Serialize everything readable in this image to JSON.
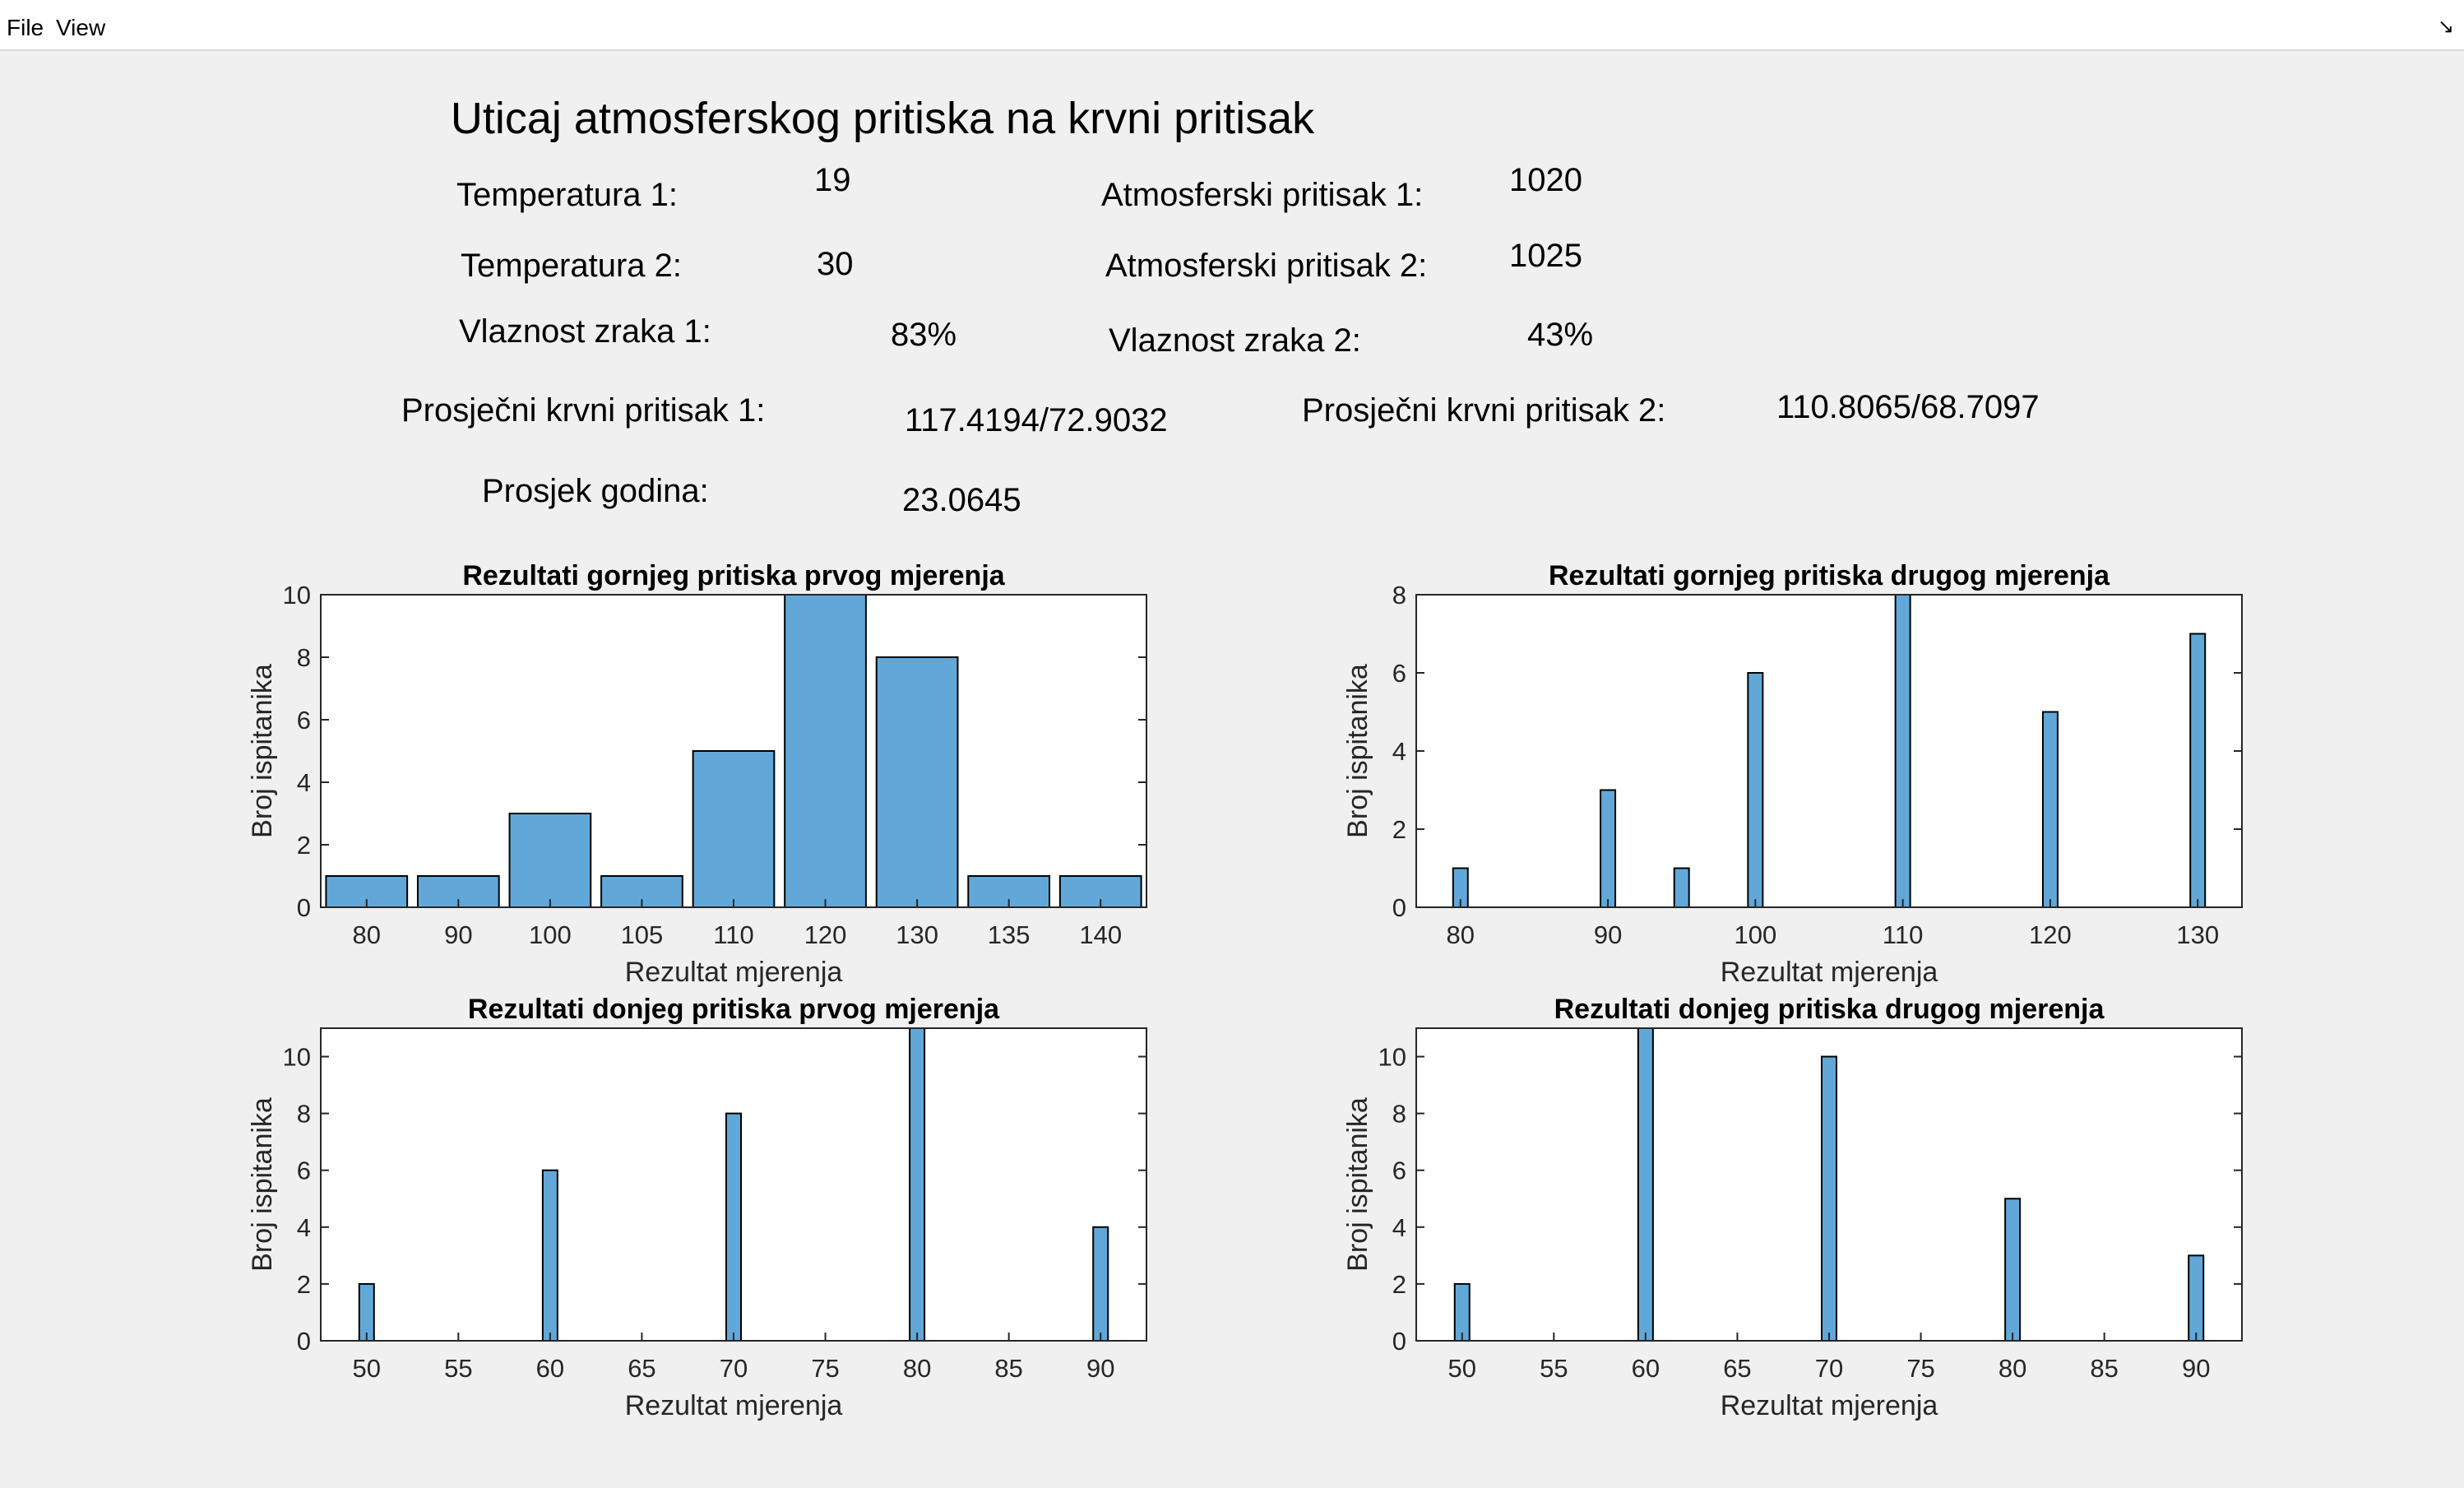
{
  "menu": {
    "file": "File",
    "view": "View"
  },
  "title": "Uticaj atmosferskog pritiska na krvni pritisak",
  "info": {
    "temp1_label": "Temperatura 1:",
    "temp1_value": "19",
    "temp2_label": "Temperatura 2:",
    "temp2_value": "30",
    "hum1_label": "Vlaznost zraka 1:",
    "hum1_value": "83%",
    "atm1_label": "Atmosferski pritisak 1:",
    "atm1_value": "1020",
    "atm2_label": "Atmosferski pritisak 2:",
    "atm2_value": "1025",
    "hum2_label": "Vlaznost zraka 2:",
    "hum2_value": "43%",
    "bp1_label": "Prosječni krvni pritisak 1:",
    "bp1_value": "117.4194/72.9032",
    "bp2_label": "Prosječni krvni pritisak 2:",
    "bp2_value": "110.8065/68.7097",
    "age_label": "Prosjek godina:",
    "age_value": "23.0645"
  },
  "chart_data": [
    {
      "type": "bar",
      "title": "Rezultati gornjeg pritiska prvog mjerenja",
      "xlabel": "Rezultat mjerenja",
      "ylabel": "Broj ispitanika",
      "scale": "categorical",
      "categories": [
        "80",
        "90",
        "100",
        "105",
        "110",
        "120",
        "130",
        "135",
        "140"
      ],
      "values": [
        1,
        1,
        3,
        1,
        5,
        10,
        8,
        1,
        1
      ],
      "ylim": [
        0,
        10
      ],
      "yticks": [
        0,
        2,
        4,
        6,
        8,
        10
      ],
      "bar_color": "#61a8d9"
    },
    {
      "type": "bar",
      "title": "Rezultati gornjeg pritiska drugog mjerenja",
      "xlabel": "Rezultat mjerenja",
      "ylabel": "Broj ispitanika",
      "scale": "numeric",
      "x": [
        80,
        90,
        95,
        100,
        110,
        120,
        130
      ],
      "values": [
        1,
        3,
        1,
        6,
        8,
        5,
        7
      ],
      "xlim": [
        77,
        133
      ],
      "xticks": [
        80,
        90,
        100,
        110,
        120,
        130
      ],
      "ylim": [
        0,
        8
      ],
      "yticks": [
        0,
        2,
        4,
        6,
        8
      ],
      "bar_color": "#61a8d9"
    },
    {
      "type": "bar",
      "title": "Rezultati donjeg pritiska prvog mjerenja",
      "xlabel": "Rezultat mjerenja",
      "ylabel": "Broj ispitanika",
      "scale": "numeric",
      "x": [
        50,
        60,
        70,
        80,
        90
      ],
      "values": [
        2,
        6,
        8,
        11,
        4
      ],
      "xlim": [
        47.5,
        92.5
      ],
      "xticks": [
        50,
        55,
        60,
        65,
        70,
        75,
        80,
        85,
        90
      ],
      "ylim": [
        0,
        11
      ],
      "yticks": [
        0,
        2,
        4,
        6,
        8,
        10
      ],
      "bar_color": "#61a8d9"
    },
    {
      "type": "bar",
      "title": "Rezultati donjeg pritiska drugog mjerenja",
      "xlabel": "Rezultat mjerenja",
      "ylabel": "Broj ispitanika",
      "scale": "numeric",
      "x": [
        50,
        60,
        70,
        80,
        90
      ],
      "values": [
        2,
        11,
        10,
        5,
        3
      ],
      "xlim": [
        47.5,
        92.5
      ],
      "xticks": [
        50,
        55,
        60,
        65,
        70,
        75,
        80,
        85,
        90
      ],
      "ylim": [
        0,
        11
      ],
      "yticks": [
        0,
        2,
        4,
        6,
        8,
        10
      ],
      "bar_color": "#61a8d9"
    }
  ]
}
